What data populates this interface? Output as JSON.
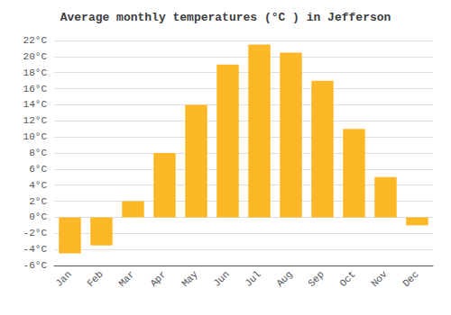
{
  "chart_data": {
    "type": "bar",
    "title": "Average monthly temperatures (°C ) in Jefferson",
    "categories": [
      "Jan",
      "Feb",
      "Mar",
      "Apr",
      "May",
      "Jun",
      "Jul",
      "Aug",
      "Sep",
      "Oct",
      "Nov",
      "Dec"
    ],
    "values": [
      -4.5,
      -3.5,
      2.0,
      8.0,
      14.0,
      19.0,
      21.5,
      20.5,
      17.0,
      11.0,
      5.0,
      -1.0
    ],
    "color": "#FDB827",
    "ylim": [
      -6,
      22
    ],
    "yticks": [
      {
        "value": -6,
        "label": "-6°C"
      },
      {
        "value": -4,
        "label": "-4°C"
      },
      {
        "value": -2,
        "label": "-2°C"
      },
      {
        "value": 0,
        "label": "0°C"
      },
      {
        "value": 2,
        "label": "2°C"
      },
      {
        "value": 4,
        "label": "4°C"
      },
      {
        "value": 6,
        "label": "6°C"
      },
      {
        "value": 8,
        "label": "8°C"
      },
      {
        "value": 10,
        "label": "10°C"
      },
      {
        "value": 12,
        "label": "12°C"
      },
      {
        "value": 14,
        "label": "14°C"
      },
      {
        "value": 16,
        "label": "16°C"
      },
      {
        "value": 18,
        "label": "18°C"
      },
      {
        "value": 20,
        "label": "20°C"
      },
      {
        "value": 22,
        "label": "22°C"
      }
    ],
    "grid": true
  }
}
